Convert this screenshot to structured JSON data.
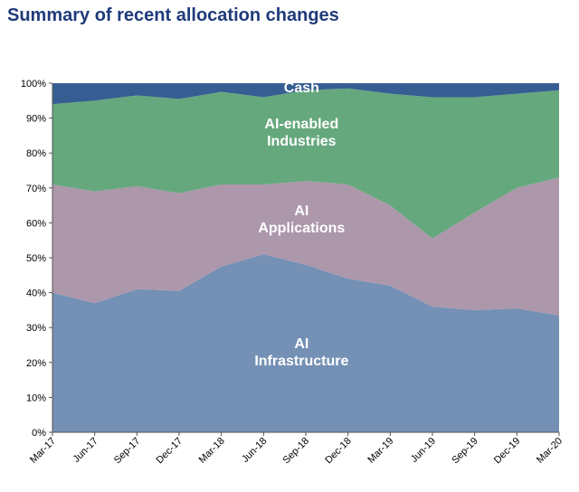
{
  "page": {
    "title": "Summary of recent allocation changes"
  },
  "chart_data": {
    "type": "area",
    "stacked": true,
    "title": "Summary of recent allocation changes",
    "xlabel": "",
    "ylabel": "",
    "ylim": [
      0,
      100
    ],
    "y_ticks": [
      "0%",
      "10%",
      "20%",
      "30%",
      "40%",
      "50%",
      "60%",
      "70%",
      "80%",
      "90%",
      "100%"
    ],
    "grid": false,
    "legend": "none (labels drawn inside areas)",
    "categories": [
      "Mar-17",
      "Jun-17",
      "Sep-17",
      "Dec-17",
      "Mar-18",
      "Jun-18",
      "Sep-18",
      "Dec-18",
      "Mar-19",
      "Jun-19",
      "Sep-19",
      "Dec-19",
      "Mar-20"
    ],
    "series": [
      {
        "name": "AI Infrastructure",
        "label_lines": [
          "AI",
          "Infrastructure"
        ],
        "color": "#7490b5",
        "values": [
          40,
          37,
          41,
          40.5,
          47.5,
          51,
          48,
          44,
          42,
          36,
          35,
          35.5,
          33.5
        ]
      },
      {
        "name": "AI Applications",
        "label_lines": [
          "AI",
          "Applications"
        ],
        "color": "#ad97ab",
        "values": [
          31,
          32,
          29.5,
          28,
          23.5,
          20,
          24,
          27,
          23,
          19.5,
          28,
          34.5,
          39.5
        ]
      },
      {
        "name": "AI-enabled Industries",
        "label_lines": [
          "AI-enabled",
          "Industries"
        ],
        "color": "#66a87d",
        "values": [
          23,
          26,
          26,
          27,
          26.5,
          25,
          26,
          27.5,
          32,
          40.5,
          33,
          27,
          25
        ]
      },
      {
        "name": "Cash",
        "label_lines": [
          "Cash"
        ],
        "color": "#365e93",
        "values": [
          6,
          5,
          3.5,
          4.5,
          2.5,
          4,
          2,
          1.5,
          3,
          4,
          4,
          3,
          2
        ]
      }
    ]
  }
}
